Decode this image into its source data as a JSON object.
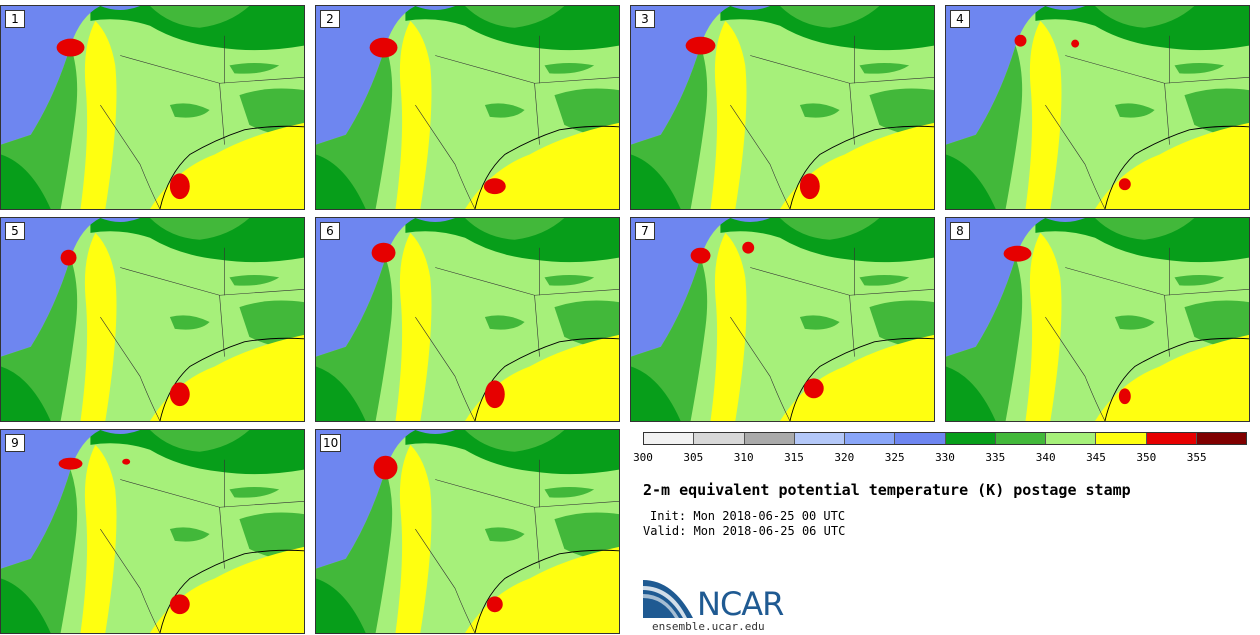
{
  "panels": [
    {
      "label": "1"
    },
    {
      "label": "2"
    },
    {
      "label": "3"
    },
    {
      "label": "4"
    },
    {
      "label": "5"
    },
    {
      "label": "6"
    },
    {
      "label": "7"
    },
    {
      "label": "8"
    },
    {
      "label": "9"
    },
    {
      "label": "10"
    }
  ],
  "colorbar": {
    "colors": [
      "#f2f2f2",
      "#d8d8d8",
      "#aaaaaa",
      "#b4c8f8",
      "#8aa6f8",
      "#6e86f0",
      "#079e1a",
      "#42b83a",
      "#a6f07a",
      "#ffff10",
      "#e60000",
      "#800000"
    ],
    "ticks": [
      "300",
      "305",
      "310",
      "315",
      "320",
      "325",
      "330",
      "335",
      "340",
      "345",
      "350",
      "355"
    ]
  },
  "title": "2-m equivalent potential temperature (K) postage stamp",
  "init": "Init: Mon 2018-06-25 00 UTC",
  "valid": "Valid: Mon 2018-06-25 06 UTC",
  "logo": {
    "text": "NCAR",
    "url": "ensemble.ucar.edu"
  }
}
